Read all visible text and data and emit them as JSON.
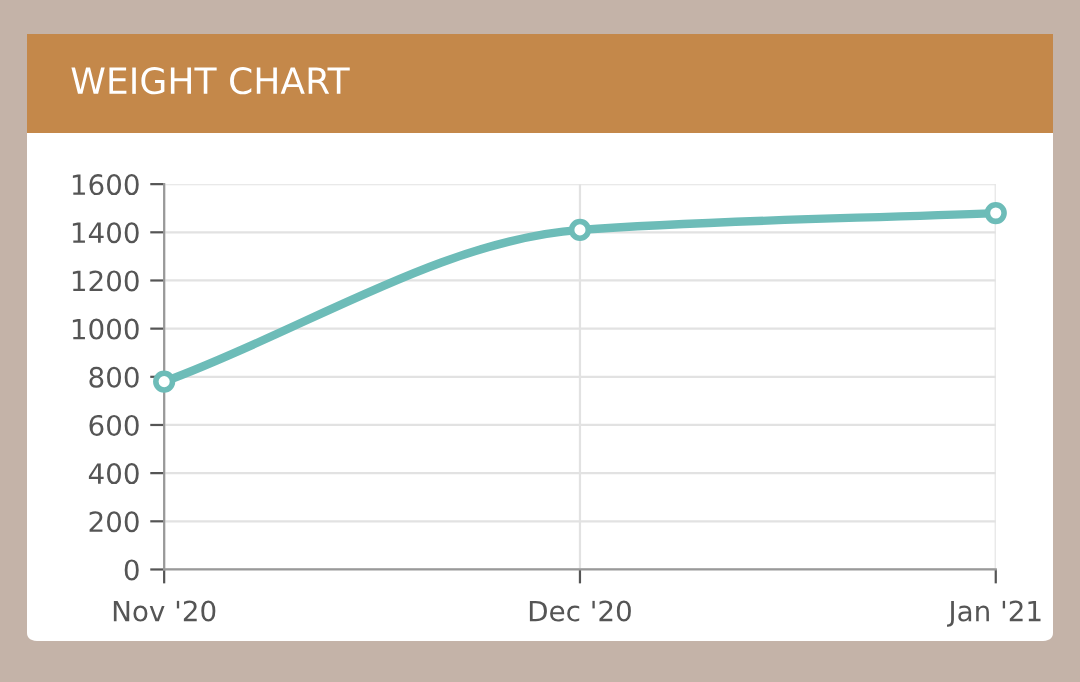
{
  "chart_data": {
    "type": "line",
    "title": "WEIGHT CHART",
    "categories": [
      "Nov '20",
      "Dec '20",
      "Jan '21"
    ],
    "series": [
      {
        "color": "#6dbcb8",
        "values": [
          780,
          1410,
          1480
        ]
      }
    ],
    "ylim": [
      0,
      1600
    ],
    "yticks": [
      0,
      200,
      400,
      600,
      800,
      1000,
      1200,
      1400,
      1600
    ],
    "grid": true,
    "marker": "circle",
    "line_style": "solid"
  }
}
